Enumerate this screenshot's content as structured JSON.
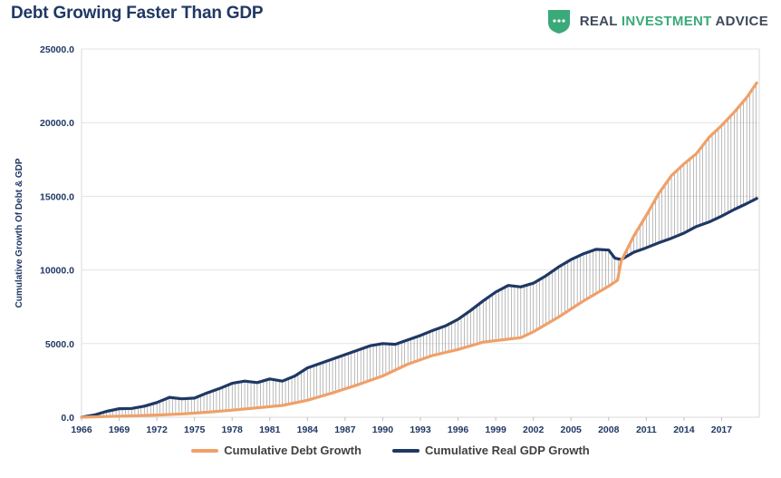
{
  "header": {
    "title": "Debt Growing Faster Than GDP",
    "brand_text_main": "REAL ",
    "brand_text_accent": "INVESTMENT",
    "brand_text_tail": " ADVICE"
  },
  "colors": {
    "debt": "#f0a069",
    "gdp": "#1f3864",
    "title": "#1f3864",
    "brand_green": "#3aaa7a"
  },
  "chart_data": {
    "type": "line",
    "title": "Debt Growing Faster Than GDP",
    "xlabel": "",
    "ylabel": "Cumulative Growth Of Debt & GDP",
    "xlim": [
      1966,
      2020
    ],
    "ylim": [
      0,
      25000
    ],
    "yticks": [
      "0.0",
      "5000.0",
      "10000.0",
      "15000.0",
      "20000.0",
      "25000.0"
    ],
    "xticks": [
      "1966",
      "1969",
      "1972",
      "1975",
      "1978",
      "1981",
      "1984",
      "1987",
      "1990",
      "1993",
      "1996",
      "1999",
      "2002",
      "2005",
      "2008",
      "2011",
      "2014",
      "2017"
    ],
    "grid": "horizontal",
    "legend_position": "bottom",
    "series": [
      {
        "name": "Cumulative Debt Growth",
        "color": "#f0a069",
        "x": [
          1966,
          1968,
          1970,
          1972,
          1974,
          1976,
          1978,
          1980,
          1982,
          1984,
          1986,
          1988,
          1990,
          1992,
          1994,
          1996,
          1998,
          2000,
          2001,
          2002,
          2004,
          2006,
          2007,
          2008,
          2008.7,
          2009,
          2010,
          2011,
          2012,
          2013,
          2014,
          2015,
          2016,
          2017,
          2018,
          2019,
          2019.8
        ],
        "values": [
          0,
          50,
          90,
          150,
          220,
          340,
          480,
          640,
          800,
          1150,
          1650,
          2200,
          2800,
          3600,
          4200,
          4600,
          5100,
          5300,
          5400,
          5800,
          6800,
          7900,
          8400,
          8900,
          9300,
          10600,
          12300,
          13700,
          15200,
          16400,
          17200,
          17900,
          19000,
          19800,
          20700,
          21700,
          22700
        ]
      },
      {
        "name": "Cumulative Real GDP Growth",
        "color": "#1f3864",
        "x": [
          1966,
          1967,
          1968,
          1969,
          1970,
          1971,
          1972,
          1973,
          1974,
          1975,
          1976,
          1977,
          1978,
          1979,
          1980,
          1981,
          1982,
          1983,
          1984,
          1985,
          1986,
          1987,
          1988,
          1989,
          1990,
          1991,
          1992,
          1993,
          1994,
          1995,
          1996,
          1997,
          1998,
          1999,
          2000,
          2001,
          2002,
          2003,
          2004,
          2005,
          2006,
          2007,
          2008,
          2008.5,
          2009,
          2010,
          2011,
          2012,
          2013,
          2014,
          2015,
          2016,
          2017,
          2018,
          2019,
          2019.8
        ],
        "values": [
          0,
          150,
          400,
          580,
          600,
          750,
          1000,
          1350,
          1250,
          1300,
          1650,
          1950,
          2300,
          2450,
          2350,
          2600,
          2450,
          2800,
          3350,
          3650,
          3950,
          4250,
          4550,
          4850,
          5000,
          4950,
          5250,
          5550,
          5900,
          6200,
          6650,
          7250,
          7900,
          8500,
          8950,
          8850,
          9100,
          9600,
          10200,
          10700,
          11100,
          11400,
          11350,
          10800,
          10700,
          11200,
          11500,
          11850,
          12150,
          12500,
          12950,
          13250,
          13650,
          14100,
          14500,
          14850
        ]
      }
    ]
  }
}
